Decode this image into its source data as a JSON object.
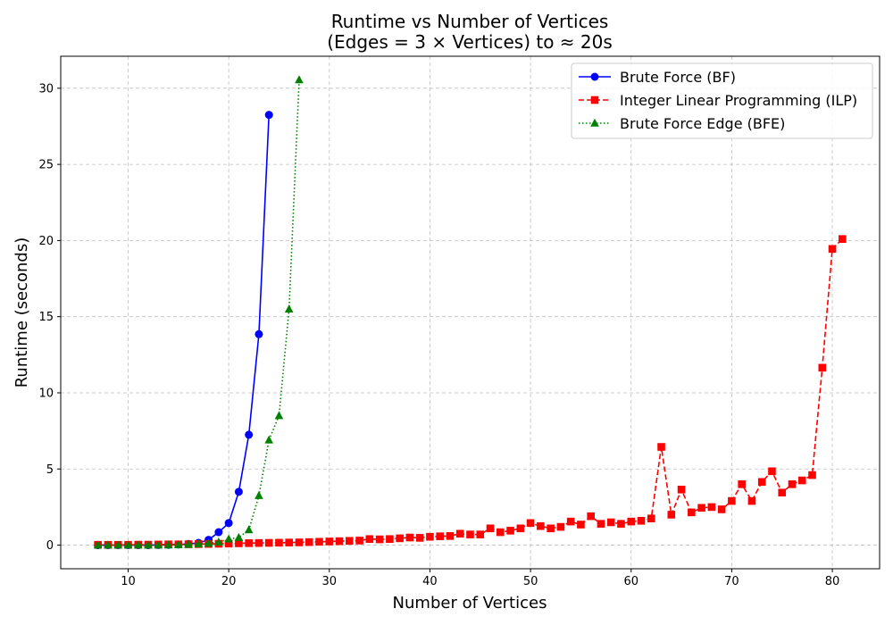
{
  "chart_data": {
    "type": "line",
    "title_line1": "Runtime vs Number of Vertices",
    "title_line2": "(Edges = 3 × Vertices)  to ≈ 20s",
    "xlabel": "Number of Vertices",
    "ylabel": "Runtime (seconds)",
    "xlim": [
      3.3,
      84.7
    ],
    "ylim": [
      -1.55,
      32.1
    ],
    "xticks": [
      10,
      20,
      30,
      40,
      50,
      60,
      70,
      80
    ],
    "yticks": [
      0,
      5,
      10,
      15,
      20,
      25,
      30
    ],
    "grid": true,
    "legend_position": "top-right",
    "series": [
      {
        "name": "Brute Force (BF)",
        "color": "#0000ff",
        "marker": "circle",
        "linestyle": "solid",
        "x": [
          7,
          8,
          9,
          10,
          11,
          12,
          13,
          14,
          15,
          16,
          17,
          18,
          19,
          20,
          21,
          22,
          23,
          24
        ],
        "y": [
          0.0,
          0.0,
          0.0,
          0.0,
          0.0,
          0.0,
          0.01,
          0.02,
          0.04,
          0.08,
          0.15,
          0.35,
          0.85,
          1.45,
          3.5,
          7.25,
          13.85,
          28.25
        ]
      },
      {
        "name": "Integer Linear Programming (ILP)",
        "color": "#ff0000",
        "marker": "square",
        "linestyle": "dashed",
        "x": [
          7,
          8,
          9,
          10,
          11,
          12,
          13,
          14,
          15,
          16,
          17,
          18,
          19,
          20,
          21,
          22,
          23,
          24,
          25,
          26,
          27,
          28,
          29,
          30,
          31,
          32,
          33,
          34,
          35,
          36,
          37,
          38,
          39,
          40,
          41,
          42,
          43,
          44,
          45,
          46,
          47,
          48,
          49,
          50,
          51,
          52,
          53,
          54,
          55,
          56,
          57,
          58,
          59,
          60,
          61,
          62,
          63,
          64,
          65,
          66,
          67,
          68,
          69,
          70,
          71,
          72,
          73,
          74,
          75,
          76,
          77,
          78,
          79,
          80,
          81
        ],
        "y": [
          0.02,
          0.02,
          0.02,
          0.02,
          0.03,
          0.03,
          0.04,
          0.05,
          0.05,
          0.06,
          0.07,
          0.08,
          0.09,
          0.1,
          0.12,
          0.13,
          0.14,
          0.15,
          0.16,
          0.17,
          0.18,
          0.2,
          0.22,
          0.24,
          0.26,
          0.28,
          0.3,
          0.4,
          0.38,
          0.4,
          0.45,
          0.5,
          0.48,
          0.55,
          0.58,
          0.6,
          0.75,
          0.7,
          0.7,
          1.1,
          0.85,
          0.95,
          1.1,
          1.45,
          1.25,
          1.1,
          1.2,
          1.55,
          1.35,
          1.9,
          1.4,
          1.5,
          1.4,
          1.55,
          1.6,
          1.75,
          6.45,
          2.0,
          3.65,
          2.15,
          2.45,
          2.5,
          2.35,
          2.9,
          4.0,
          2.9,
          4.15,
          4.85,
          3.45,
          4.0,
          4.25,
          4.6,
          11.65,
          19.45,
          20.1
        ]
      },
      {
        "name": "Brute Force Edge (BFE)",
        "color": "#008000",
        "marker": "triangle",
        "linestyle": "dotted",
        "x": [
          7,
          8,
          9,
          10,
          11,
          12,
          13,
          14,
          15,
          16,
          17,
          18,
          19,
          20,
          21,
          22,
          23,
          24,
          25,
          26,
          27
        ],
        "y": [
          0.0,
          0.0,
          0.0,
          0.0,
          0.0,
          0.0,
          0.0,
          0.01,
          0.02,
          0.04,
          0.07,
          0.12,
          0.2,
          0.4,
          0.5,
          1.0,
          3.25,
          6.9,
          8.5,
          15.5,
          30.55
        ]
      }
    ]
  }
}
